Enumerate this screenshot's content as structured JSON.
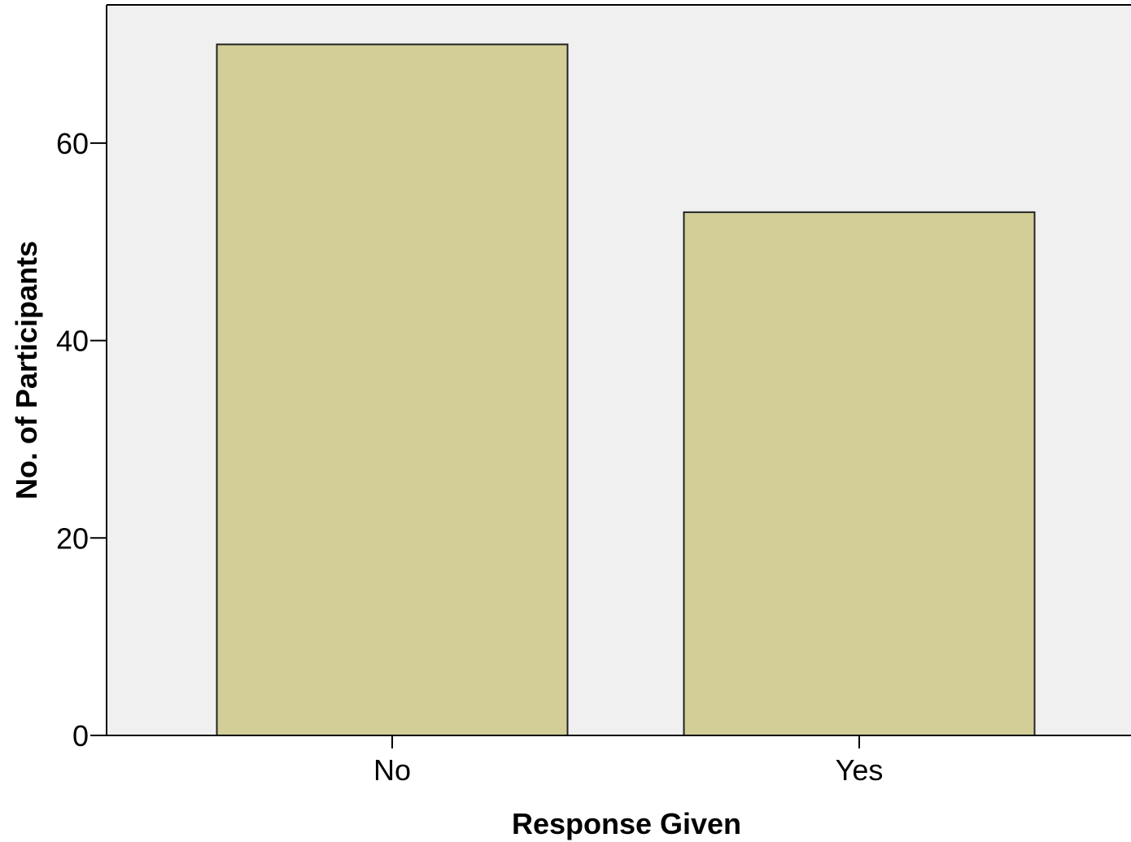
{
  "chart_data": {
    "type": "bar",
    "title": "",
    "xlabel": "Response Given",
    "ylabel": "No. of Participants",
    "categories": [
      "No",
      "Yes"
    ],
    "values": [
      70,
      53
    ],
    "ylim": [
      0,
      74
    ],
    "yticks": [
      0,
      20,
      40,
      60
    ],
    "grid": false,
    "legend": "none",
    "colors": {
      "bar_fill": "#d3ce98",
      "bar_stroke": "#222222",
      "plot_background": "#f0f0f0",
      "axis": "#000000"
    }
  }
}
